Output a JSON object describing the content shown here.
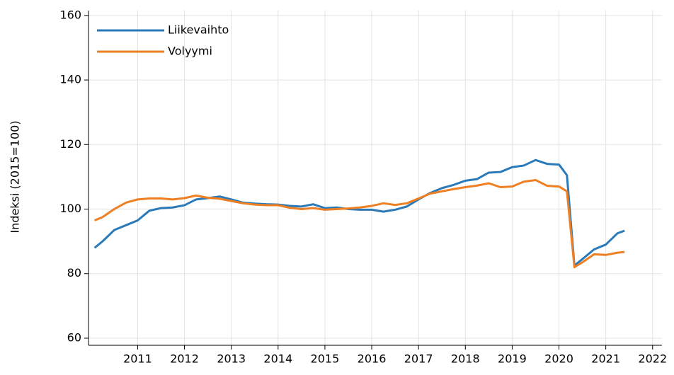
{
  "chart_data": {
    "type": "line",
    "y_label": "Indeksi (2015=100)",
    "x": [
      2010.08,
      2010.25,
      2010.5,
      2010.75,
      2011.0,
      2011.25,
      2011.5,
      2011.75,
      2012.0,
      2012.25,
      2012.5,
      2012.75,
      2013.0,
      2013.25,
      2013.5,
      2013.75,
      2014.0,
      2014.25,
      2014.5,
      2014.75,
      2015.0,
      2015.25,
      2015.5,
      2015.75,
      2016.0,
      2016.25,
      2016.5,
      2016.75,
      2017.0,
      2017.25,
      2017.5,
      2017.75,
      2018.0,
      2018.25,
      2018.5,
      2018.75,
      2019.0,
      2019.25,
      2019.5,
      2019.75,
      2020.0,
      2020.17,
      2020.33,
      2020.5,
      2020.75,
      2021.0,
      2021.25,
      2021.4
    ],
    "series": [
      {
        "name": "Liikevaihto",
        "color": "#2a7ab9",
        "values": [
          88,
          90,
          93.5,
          95,
          96.5,
          99.5,
          100.3,
          100.5,
          101.2,
          103,
          103.4,
          103.9,
          103,
          102,
          101.7,
          101.5,
          101.4,
          101,
          100.8,
          101.5,
          100.3,
          100.5,
          100,
          99.8,
          99.8,
          99.2,
          99.8,
          100.8,
          103,
          105,
          106.5,
          107.5,
          108.8,
          109.3,
          111.3,
          111.5,
          113,
          113.5,
          115.2,
          114,
          113.8,
          110.5,
          82.5,
          84.5,
          87.5,
          89,
          92.5,
          93.3
        ]
      },
      {
        "name": "Volyymi",
        "color": "#ee7f22",
        "values": [
          96.5,
          97.5,
          100,
          102,
          103,
          103.3,
          103.3,
          103,
          103.4,
          104.2,
          103.5,
          103.2,
          102.5,
          101.8,
          101.4,
          101.2,
          101.2,
          100.4,
          100,
          100.3,
          99.8,
          100,
          100.2,
          100.5,
          101,
          101.8,
          101.3,
          101.8,
          103.3,
          104.8,
          105.5,
          106.2,
          106.8,
          107.3,
          108,
          106.8,
          107,
          108.5,
          109,
          107.2,
          107,
          105.5,
          82,
          83.5,
          86,
          85.8,
          86.5,
          86.7
        ]
      }
    ],
    "xlim": [
      2009.95,
      2022.2
    ],
    "xticks": [
      2011,
      2012,
      2013,
      2014,
      2015,
      2016,
      2017,
      2018,
      2019,
      2020,
      2021,
      2022
    ],
    "ylim": [
      57.8,
      161.5
    ],
    "yticks": [
      60,
      80,
      100,
      120,
      140,
      160
    ],
    "grid": true,
    "legend": "upper-left"
  }
}
